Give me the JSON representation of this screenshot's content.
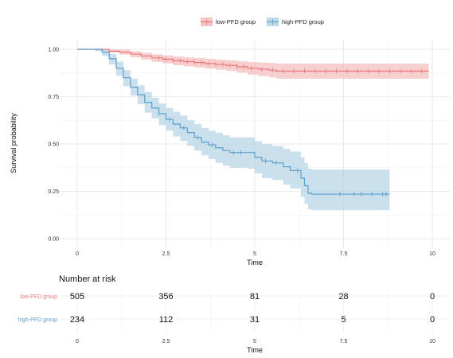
{
  "chart_data": {
    "type": "line",
    "xlabel": "Time",
    "ylabel": "Survival probability",
    "xlim": [
      0,
      10
    ],
    "ylim": [
      0,
      1
    ],
    "x_ticks": [
      "0",
      "2.5",
      "5",
      "7.5",
      "10"
    ],
    "y_ticks": [
      "0.00",
      "0.25",
      "0.50",
      "0.75",
      "1.00"
    ],
    "grid": true,
    "legend_position": "top",
    "series": [
      {
        "name": "low-PFD group",
        "color": "#e8797a",
        "band_color": "#f4b6b6",
        "points": [
          [
            0,
            1
          ],
          [
            0.6,
            1
          ],
          [
            0.9,
            0.99
          ],
          [
            1.2,
            0.985
          ],
          [
            1.5,
            0.975
          ],
          [
            1.8,
            0.965
          ],
          [
            2.1,
            0.955
          ],
          [
            2.4,
            0.948
          ],
          [
            2.7,
            0.94
          ],
          [
            3.0,
            0.935
          ],
          [
            3.3,
            0.93
          ],
          [
            3.6,
            0.925
          ],
          [
            3.9,
            0.92
          ],
          [
            4.2,
            0.915
          ],
          [
            4.5,
            0.908
          ],
          [
            4.8,
            0.9
          ],
          [
            5.1,
            0.895
          ],
          [
            5.4,
            0.89
          ],
          [
            5.6,
            0.885
          ],
          [
            9.9,
            0.885
          ]
        ],
        "upper": [
          [
            0,
            1
          ],
          [
            0.6,
            1
          ],
          [
            0.9,
            1.0
          ],
          [
            1.2,
            0.998
          ],
          [
            1.5,
            0.99
          ],
          [
            1.8,
            0.982
          ],
          [
            2.1,
            0.974
          ],
          [
            2.4,
            0.968
          ],
          [
            2.7,
            0.962
          ],
          [
            3.0,
            0.958
          ],
          [
            3.3,
            0.954
          ],
          [
            3.6,
            0.95
          ],
          [
            3.9,
            0.946
          ],
          [
            4.2,
            0.942
          ],
          [
            4.5,
            0.937
          ],
          [
            4.8,
            0.932
          ],
          [
            5.1,
            0.93
          ],
          [
            5.4,
            0.928
          ],
          [
            5.6,
            0.925
          ],
          [
            9.9,
            0.925
          ]
        ],
        "lower": [
          [
            0,
            1
          ],
          [
            0.6,
            0.995
          ],
          [
            0.9,
            0.982
          ],
          [
            1.2,
            0.972
          ],
          [
            1.5,
            0.958
          ],
          [
            1.8,
            0.946
          ],
          [
            2.1,
            0.934
          ],
          [
            2.4,
            0.926
          ],
          [
            2.7,
            0.916
          ],
          [
            3.0,
            0.91
          ],
          [
            3.3,
            0.904
          ],
          [
            3.6,
            0.898
          ],
          [
            3.9,
            0.892
          ],
          [
            4.2,
            0.886
          ],
          [
            4.5,
            0.877
          ],
          [
            4.8,
            0.866
          ],
          [
            5.1,
            0.859
          ],
          [
            5.4,
            0.852
          ],
          [
            5.6,
            0.845
          ],
          [
            9.9,
            0.845
          ]
        ],
        "censor_x": [
          2.3,
          2.5,
          2.7,
          2.9,
          3.1,
          3.3,
          3.5,
          3.7,
          3.9,
          4.1,
          4.3,
          4.5,
          4.7,
          4.9,
          5.2,
          5.5,
          5.8,
          6.1,
          6.4,
          6.7,
          7.0,
          7.3,
          7.6,
          7.9,
          8.2,
          8.5,
          8.8,
          9.1,
          9.4,
          9.7
        ]
      },
      {
        "name": "high-PFD group",
        "color": "#5b9ec9",
        "band_color": "#aecfe4",
        "points": [
          [
            0,
            1
          ],
          [
            0.5,
            1
          ],
          [
            0.7,
            0.985
          ],
          [
            0.9,
            0.95
          ],
          [
            1.1,
            0.9
          ],
          [
            1.3,
            0.85
          ],
          [
            1.5,
            0.8
          ],
          [
            1.7,
            0.76
          ],
          [
            1.9,
            0.72
          ],
          [
            2.1,
            0.69
          ],
          [
            2.3,
            0.66
          ],
          [
            2.5,
            0.63
          ],
          [
            2.7,
            0.605
          ],
          [
            2.9,
            0.585
          ],
          [
            3.1,
            0.56
          ],
          [
            3.3,
            0.535
          ],
          [
            3.5,
            0.51
          ],
          [
            3.7,
            0.495
          ],
          [
            3.9,
            0.48
          ],
          [
            4.1,
            0.465
          ],
          [
            4.3,
            0.455
          ],
          [
            4.8,
            0.455
          ],
          [
            5.0,
            0.43
          ],
          [
            5.2,
            0.41
          ],
          [
            5.5,
            0.4
          ],
          [
            5.8,
            0.38
          ],
          [
            6.0,
            0.36
          ],
          [
            6.3,
            0.32
          ],
          [
            6.4,
            0.28
          ],
          [
            6.5,
            0.24
          ],
          [
            6.6,
            0.235
          ],
          [
            8.8,
            0.235
          ]
        ],
        "upper": [
          [
            0,
            1
          ],
          [
            0.5,
            1
          ],
          [
            0.7,
            1.0
          ],
          [
            0.9,
            0.975
          ],
          [
            1.1,
            0.935
          ],
          [
            1.3,
            0.89
          ],
          [
            1.5,
            0.845
          ],
          [
            1.7,
            0.81
          ],
          [
            1.9,
            0.775
          ],
          [
            2.1,
            0.745
          ],
          [
            2.3,
            0.715
          ],
          [
            2.5,
            0.69
          ],
          [
            2.7,
            0.67
          ],
          [
            2.9,
            0.65
          ],
          [
            3.1,
            0.625
          ],
          [
            3.3,
            0.605
          ],
          [
            3.5,
            0.585
          ],
          [
            3.7,
            0.57
          ],
          [
            3.9,
            0.56
          ],
          [
            4.1,
            0.545
          ],
          [
            4.3,
            0.535
          ],
          [
            4.8,
            0.535
          ],
          [
            5.0,
            0.515
          ],
          [
            5.2,
            0.5
          ],
          [
            5.5,
            0.49
          ],
          [
            5.8,
            0.475
          ],
          [
            6.0,
            0.46
          ],
          [
            6.3,
            0.43
          ],
          [
            6.4,
            0.4
          ],
          [
            6.5,
            0.37
          ],
          [
            6.6,
            0.365
          ],
          [
            8.8,
            0.365
          ]
        ],
        "lower": [
          [
            0,
            1
          ],
          [
            0.5,
            0.99
          ],
          [
            0.7,
            0.965
          ],
          [
            0.9,
            0.92
          ],
          [
            1.1,
            0.86
          ],
          [
            1.3,
            0.805
          ],
          [
            1.5,
            0.755
          ],
          [
            1.7,
            0.71
          ],
          [
            1.9,
            0.665
          ],
          [
            2.1,
            0.635
          ],
          [
            2.3,
            0.6
          ],
          [
            2.5,
            0.57
          ],
          [
            2.7,
            0.54
          ],
          [
            2.9,
            0.515
          ],
          [
            3.1,
            0.49
          ],
          [
            3.3,
            0.465
          ],
          [
            3.5,
            0.44
          ],
          [
            3.7,
            0.42
          ],
          [
            3.9,
            0.4
          ],
          [
            4.1,
            0.385
          ],
          [
            4.3,
            0.375
          ],
          [
            4.8,
            0.37
          ],
          [
            5.0,
            0.345
          ],
          [
            5.2,
            0.32
          ],
          [
            5.5,
            0.31
          ],
          [
            5.8,
            0.285
          ],
          [
            6.0,
            0.265
          ],
          [
            6.3,
            0.22
          ],
          [
            6.4,
            0.185
          ],
          [
            6.5,
            0.155
          ],
          [
            6.6,
            0.15
          ],
          [
            8.8,
            0.15
          ]
        ],
        "censor_x": [
          2.3,
          2.6,
          3.0,
          3.4,
          3.8,
          4.4,
          4.6,
          5.3,
          5.6,
          6.2,
          7.4,
          7.8,
          8.0,
          8.3,
          8.6,
          8.7
        ]
      }
    ],
    "risk_table": {
      "title": "Number at risk",
      "xlabel": "Time",
      "x_ticks": [
        "0",
        "2.5",
        "5",
        "7.5",
        "10"
      ],
      "rows": [
        {
          "label": "low-PFD group",
          "color": "#e8797a",
          "values": [
            "505",
            "356",
            "81",
            "28",
            "0"
          ]
        },
        {
          "label": "high-PFD group",
          "color": "#5b9ec9",
          "values": [
            "234",
            "112",
            "31",
            "5",
            "0"
          ]
        }
      ]
    }
  }
}
